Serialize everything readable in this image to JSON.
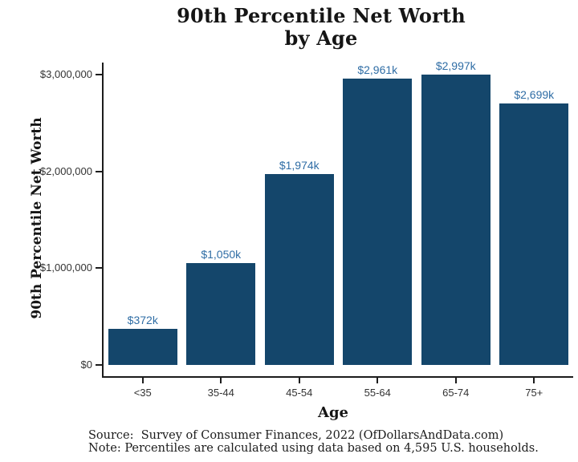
{
  "page": {
    "background": "#ffffff"
  },
  "chart_data": {
    "type": "bar",
    "title": "90th Percentile Net Worth by Age",
    "title_lines": [
      "90th Percentile Net Worth",
      "by Age"
    ],
    "xlabel": "Age",
    "ylabel": "90th Percentile Net Worth",
    "categories": [
      "<35",
      "35-44",
      "45-54",
      "55-64",
      "65-74",
      "75+"
    ],
    "values": [
      372000,
      1050000,
      1974000,
      2961000,
      2997000,
      2699000
    ],
    "bar_labels": [
      "$372k",
      "$1,050k",
      "$1,974k",
      "$2,961k",
      "$2,997k",
      "$2,699k"
    ],
    "y_ticks": [
      {
        "value": 0,
        "label": "$0"
      },
      {
        "value": 1000000,
        "label": "$1,000,000"
      },
      {
        "value": 2000000,
        "label": "$2,000,000"
      },
      {
        "value": 3000000,
        "label": "$3,000,000"
      }
    ],
    "ylim": [
      0,
      3000000
    ],
    "grid": false,
    "legend": null,
    "colors": {
      "bar_fill": "#14466b",
      "bar_label": "#2f6da5",
      "axis_line": "#1c1c1c",
      "tick_text": "#333333"
    },
    "source": "Source:  Survey of Consumer Finances, 2022 (OfDollarsAndData.com)",
    "note": "Note: Percentiles are calculated using data based on 4,595 U.S. households."
  }
}
